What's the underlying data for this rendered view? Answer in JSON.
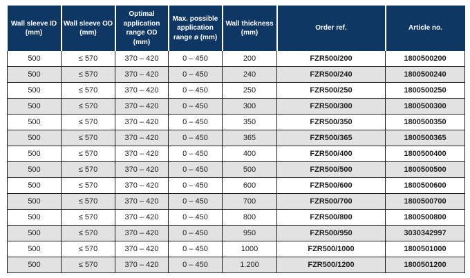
{
  "colors": {
    "header_bg": "#0e3764",
    "header_text": "#ffffff",
    "row_alt_bg": "#e2e2e2",
    "border": "#1b1b1b",
    "body_text": "#1c1c1c",
    "page_bg": "#ffffff"
  },
  "table": {
    "columns": [
      "Wall sleeve ID\n(mm)",
      "Wall sleeve OD\n(mm)",
      "Optimal\napplication\nrange OD\n(mm)",
      "Max. possible\napplication\nrange ø (mm)",
      "Wall thickness\n(mm)",
      "Order ref.",
      "Article no."
    ],
    "column_keys": [
      "wall-sleeve-id",
      "wall-sleeve-od",
      "optimal-application-range-od",
      "max-possible-application-range",
      "wall-thickness",
      "order-ref",
      "article-no"
    ],
    "bold_columns": [
      5,
      6
    ],
    "rows": [
      [
        "500",
        "≤ 570",
        "370 – 420",
        "0 – 450",
        "200",
        "FZR500/200",
        "1800500200"
      ],
      [
        "500",
        "≤ 570",
        "370 – 420",
        "0 – 450",
        "240",
        "FZR500/240",
        "1800500240"
      ],
      [
        "500",
        "≤ 570",
        "370 – 420",
        "0 – 450",
        "250",
        "FZR500/250",
        "1800500250"
      ],
      [
        "500",
        "≤ 570",
        "370 – 420",
        "0 – 450",
        "300",
        "FZR500/300",
        "1800500300"
      ],
      [
        "500",
        "≤ 570",
        "370 – 420",
        "0 – 450",
        "350",
        "FZR500/350",
        "1800500350"
      ],
      [
        "500",
        "≤ 570",
        "370 – 420",
        "0 – 450",
        "365",
        "FZR500/365",
        "1800500365"
      ],
      [
        "500",
        "≤ 570",
        "370 – 420",
        "0 – 450",
        "400",
        "FZR500/400",
        "1800500400"
      ],
      [
        "500",
        "≤ 570",
        "370 – 420",
        "0 – 450",
        "500",
        "FZR500/500",
        "1800500500"
      ],
      [
        "500",
        "≤ 570",
        "370 – 420",
        "0 – 450",
        "600",
        "FZR500/600",
        "1800500600"
      ],
      [
        "500",
        "≤ 570",
        "370 – 420",
        "0 – 450",
        "700",
        "FZR500/700",
        "1800500700"
      ],
      [
        "500",
        "≤ 570",
        "370 – 420",
        "0 – 450",
        "800",
        "FZR500/800",
        "1800500800"
      ],
      [
        "500",
        "≤ 570",
        "370 – 420",
        "0 – 450",
        "950",
        "FZR500/950",
        "3030342997"
      ],
      [
        "500",
        "≤ 570",
        "370 – 420",
        "0 – 450",
        "1000",
        "FZR500/1000",
        "1800501000"
      ],
      [
        "500",
        "≤ 570",
        "370 – 420",
        "0 – 450",
        "1.200",
        "FZR500/1200",
        "1800501200"
      ]
    ]
  }
}
